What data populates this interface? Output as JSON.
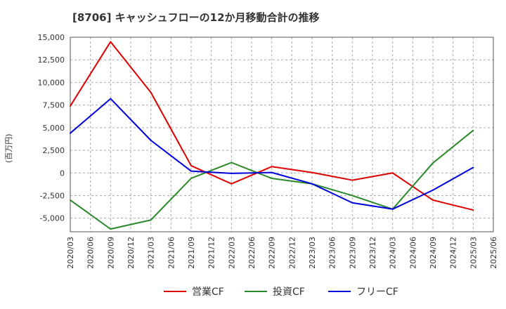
{
  "chart_data": {
    "type": "line",
    "title": "[8706]  キャッシュフローの12か月移動合計の推移",
    "ylabel": "(百万円)",
    "xlabel": "",
    "ylim": [
      -6500,
      15000
    ],
    "yticks": [
      15000,
      12500,
      10000,
      7500,
      5000,
      2500,
      0,
      -2500,
      -5000
    ],
    "ytick_labels": [
      "15,000",
      "12,500",
      "10,000",
      "7,500",
      "5,000",
      "2,500",
      "0",
      "-2,500",
      "-5,000"
    ],
    "x_ticks": [
      "2020/03",
      "2020/06",
      "2020/09",
      "2020/12",
      "2021/03",
      "2021/06",
      "2021/09",
      "2021/12",
      "2022/03",
      "2022/06",
      "2022/09",
      "2022/12",
      "2023/03",
      "2023/06",
      "2023/09",
      "2023/12",
      "2024/03",
      "2024/06",
      "2024/09",
      "2024/12",
      "2025/03",
      "2025/06"
    ],
    "x": [
      "2020/03",
      "2020/09",
      "2021/03",
      "2021/09",
      "2022/03",
      "2022/09",
      "2023/03",
      "2023/09",
      "2024/03",
      "2024/09",
      "2025/03"
    ],
    "grid": true,
    "legend_position": "bottom",
    "series": [
      {
        "name": "営業CF",
        "color": "#dd0000",
        "values": [
          7400,
          14500,
          8900,
          800,
          -1200,
          700,
          50,
          -800,
          0,
          -3000,
          -4100
        ]
      },
      {
        "name": "投資CF",
        "color": "#2a8a2a",
        "values": [
          -3000,
          -6200,
          -5200,
          -600,
          1150,
          -600,
          -1200,
          -2500,
          -4000,
          1100,
          4700
        ]
      },
      {
        "name": "フリーCF",
        "color": "#0000dd",
        "values": [
          4400,
          8200,
          3600,
          200,
          -50,
          50,
          -1200,
          -3300,
          -4000,
          -1900,
          600
        ]
      }
    ]
  }
}
